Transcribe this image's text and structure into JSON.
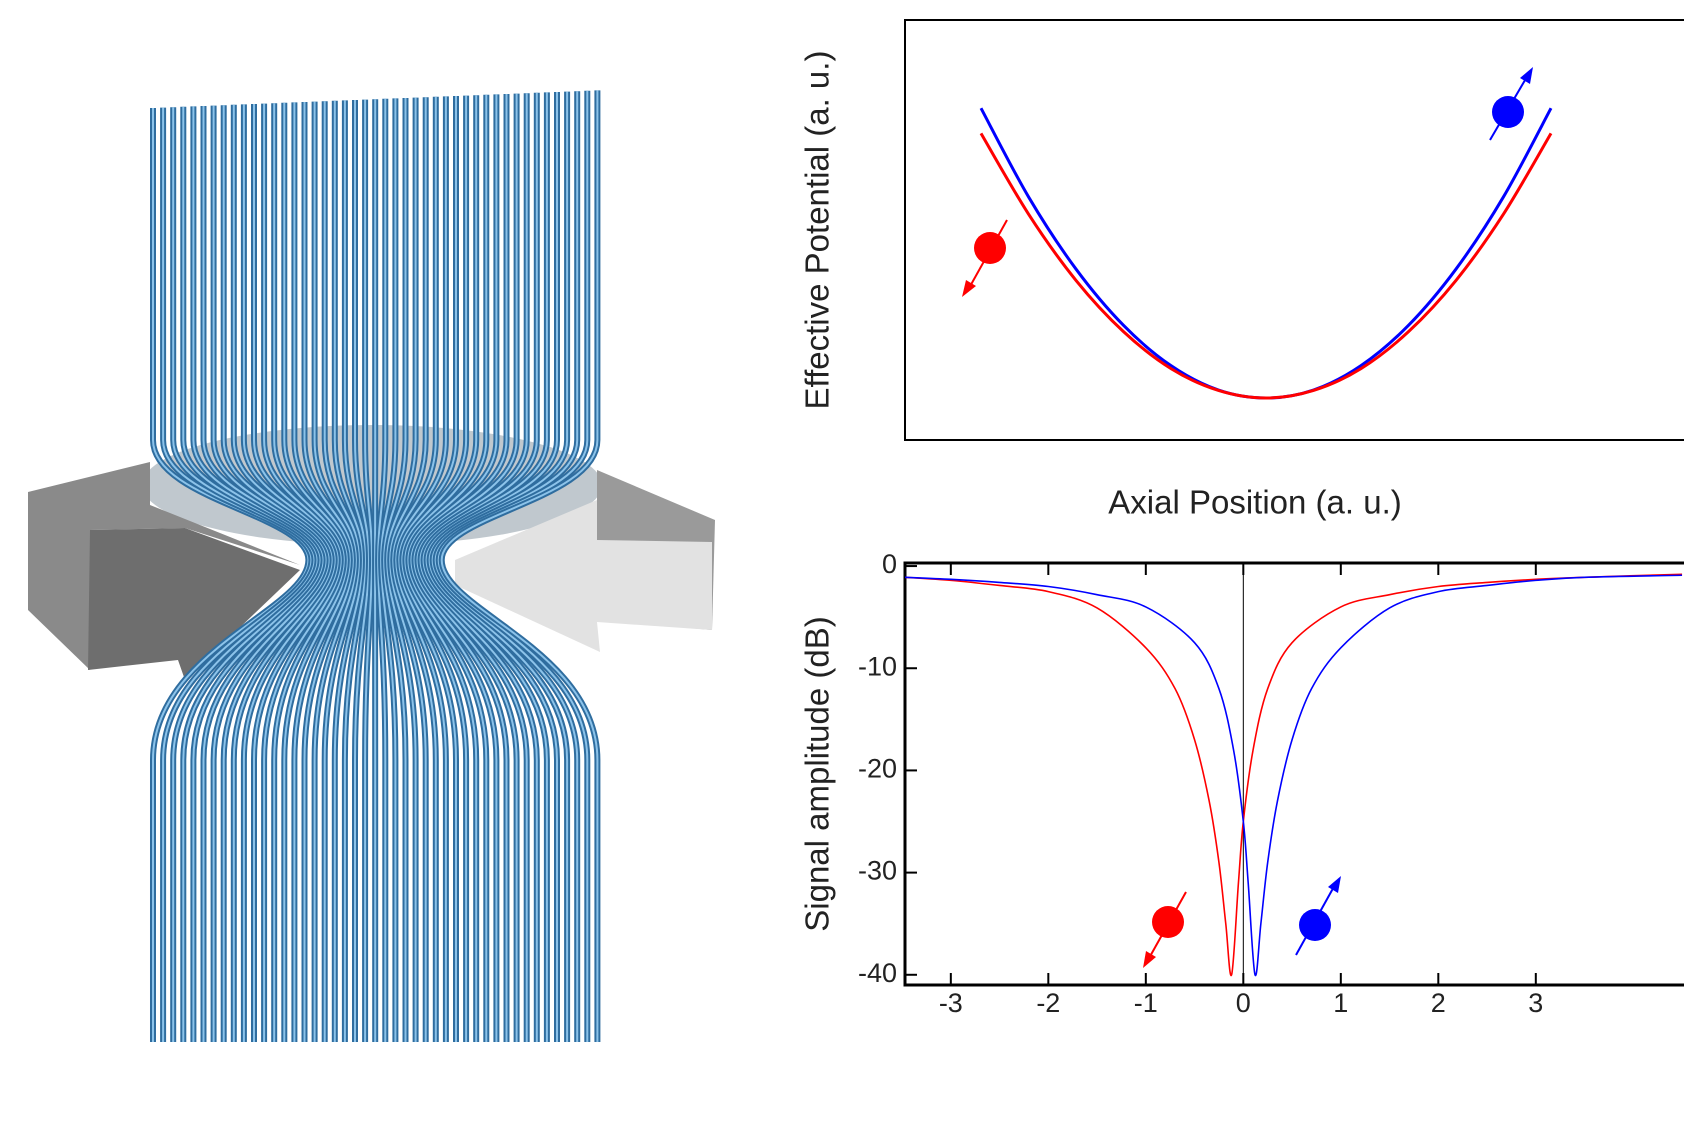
{
  "chart_data": [
    {
      "type": "line",
      "y_label": "Effective Potential (a. u.)",
      "x_label": "Axial Position (a. u.)",
      "xlim": [
        -3.8,
        4.4
      ],
      "ylim": [
        0,
        1
      ],
      "series": [
        {
          "color": "#0000ff",
          "x": [
            -3,
            -2.5,
            -2,
            -1.5,
            -1,
            -0.5,
            0,
            0.5,
            1,
            1.5,
            2,
            2.5,
            3
          ],
          "values": [
            0.79,
            0.579,
            0.407,
            0.273,
            0.177,
            0.119,
            0.1,
            0.119,
            0.177,
            0.273,
            0.407,
            0.579,
            0.79
          ]
        },
        {
          "color": "#ff0000",
          "x": [
            -3,
            -2.5,
            -2,
            -1.5,
            -1,
            -0.5,
            0,
            0.5,
            1,
            1.5,
            2,
            2.5,
            3
          ],
          "values": [
            0.73,
            0.538,
            0.38,
            0.258,
            0.17,
            0.118,
            0.1,
            0.118,
            0.17,
            0.258,
            0.38,
            0.538,
            0.73
          ]
        }
      ]
    },
    {
      "type": "line",
      "y_label": "Signal amplitude (dB)",
      "xlim": [
        -3.47,
        4.52
      ],
      "ylim": [
        -41,
        0.3
      ],
      "xticks": [
        -3,
        -2,
        -1,
        0,
        1,
        2,
        3
      ],
      "yticks": [
        0,
        -10,
        -20,
        -30,
        -40
      ],
      "series": [
        {
          "color": "#ff0000",
          "x": [
            -3.47,
            -3,
            -2.5,
            -2,
            -1.5,
            -1,
            -0.7,
            -0.5,
            -0.35,
            -0.25,
            -0.18,
            -0.12,
            -0.05,
            0,
            0.1,
            0.25,
            0.5,
            1,
            1.5,
            2,
            2.5,
            3,
            3.5,
            4.5
          ],
          "values": [
            -1.1,
            -1.4,
            -1.9,
            -2.5,
            -4.1,
            -8,
            -12,
            -17,
            -23,
            -29,
            -35,
            -40,
            -31,
            -25,
            -18,
            -12,
            -7.5,
            -4,
            -2.8,
            -2,
            -1.6,
            -1.3,
            -1.1,
            -0.8
          ]
        },
        {
          "color": "#0000ff",
          "x": [
            -3.47,
            -3,
            -2.5,
            -2,
            -1.5,
            -1,
            -0.5,
            -0.25,
            -0.1,
            0,
            0.05,
            0.12,
            0.18,
            0.25,
            0.35,
            0.5,
            0.7,
            1,
            1.5,
            2,
            2.5,
            3,
            3.5,
            4.5
          ],
          "values": [
            -1.1,
            -1.3,
            -1.6,
            -2,
            -2.8,
            -4,
            -7.5,
            -12,
            -18,
            -25,
            -31,
            -40,
            -35,
            -29,
            -23,
            -17,
            -12,
            -8,
            -4.1,
            -2.5,
            -1.9,
            -1.4,
            -1.1,
            -0.9
          ]
        }
      ]
    }
  ]
}
